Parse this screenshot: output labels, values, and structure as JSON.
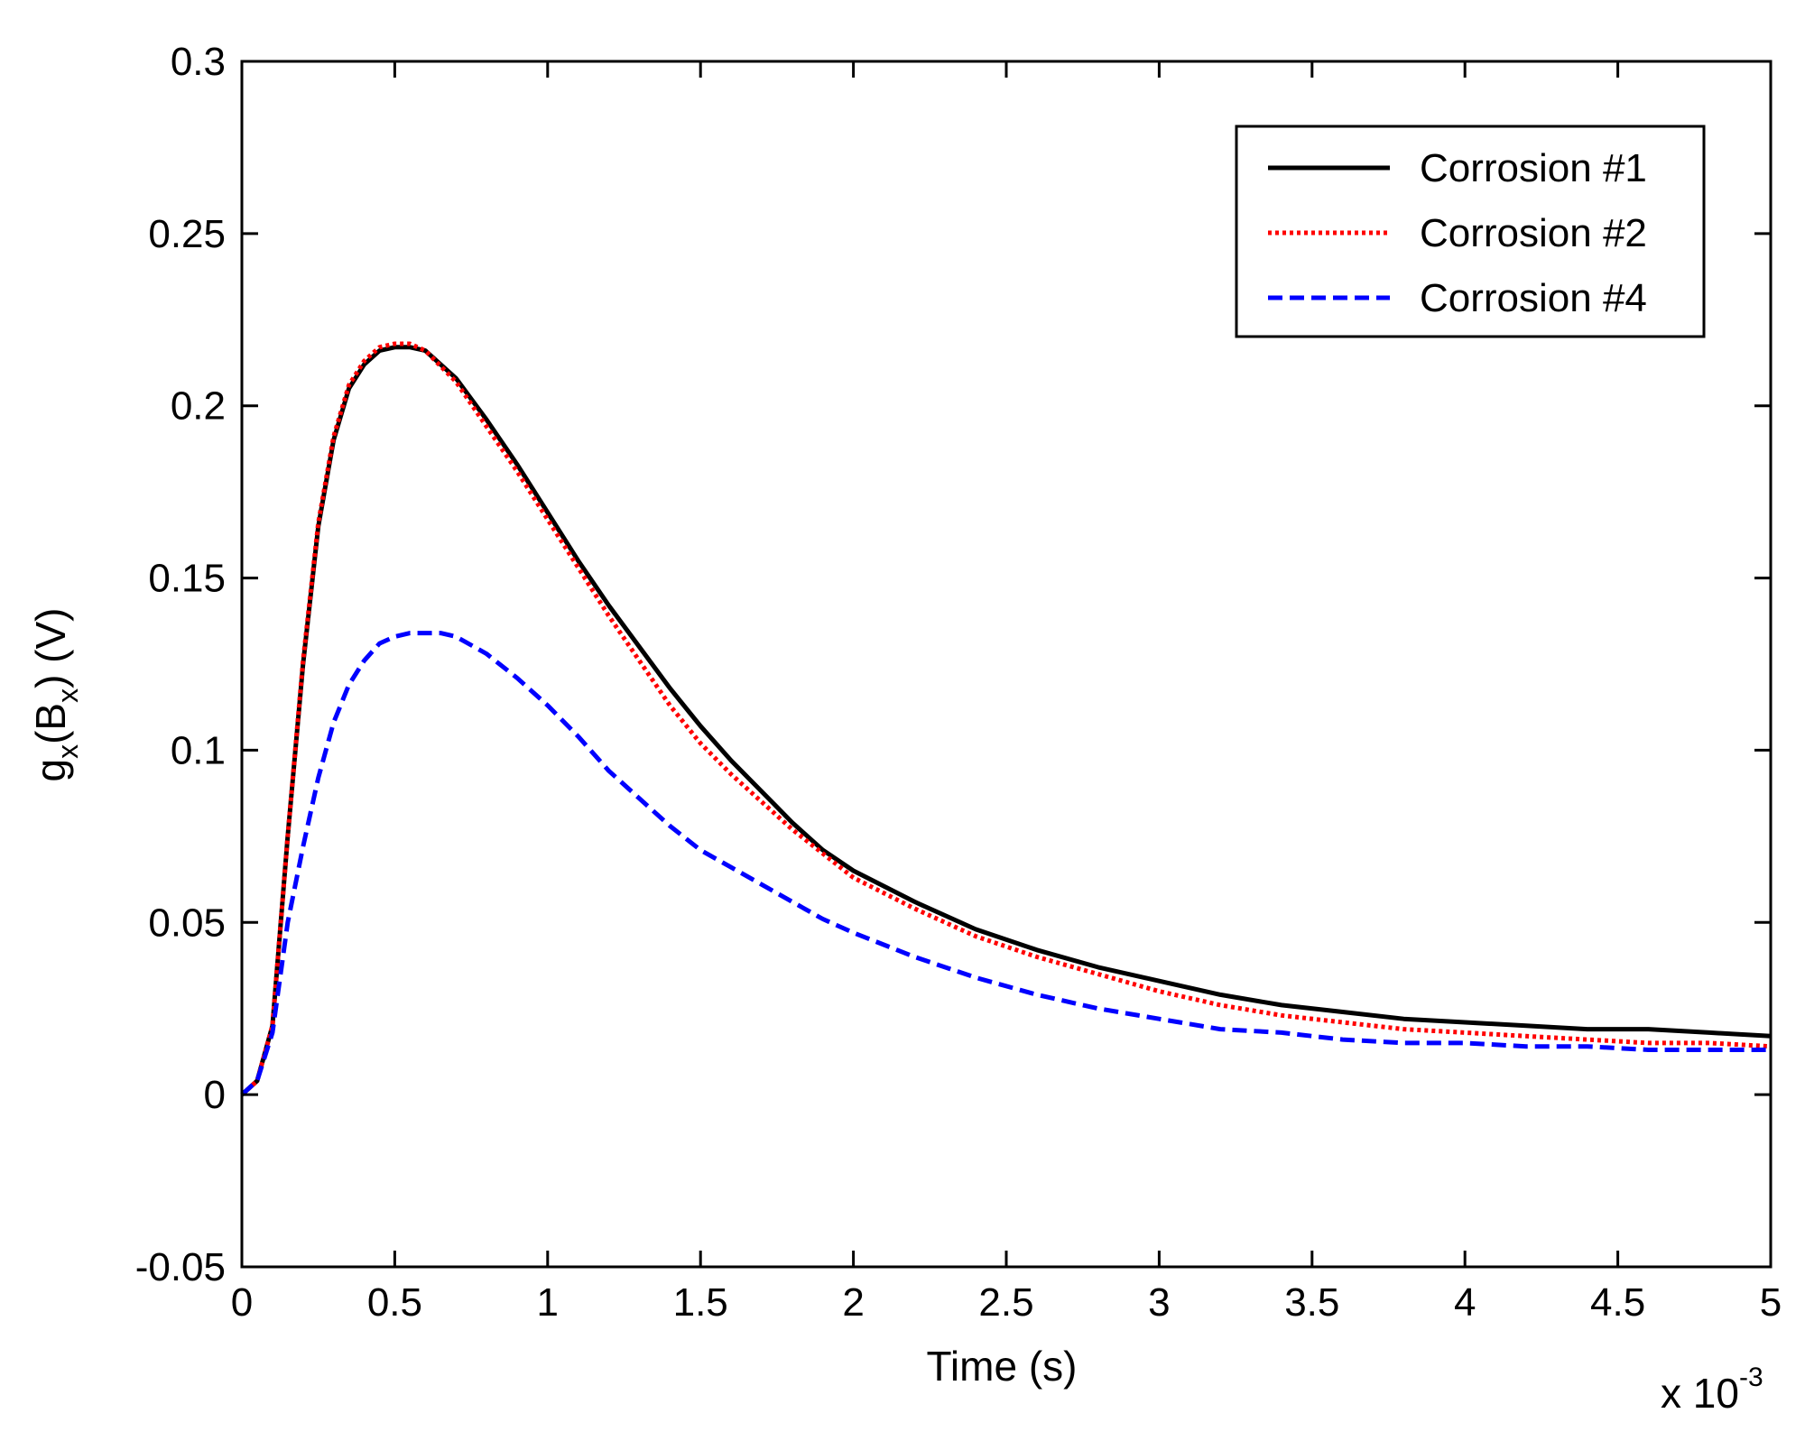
{
  "chart_data": {
    "type": "line",
    "title": "",
    "xlabel": "Time (s)",
    "ylabel": {
      "base": "g",
      "sub1": "x",
      "mid": "(B",
      "sub2": "x",
      "end": ") (V)"
    },
    "x_multiplier": {
      "prefix": "x 10",
      "exponent": "-3"
    },
    "xlim": [
      0,
      5
    ],
    "ylim": [
      -0.05,
      0.3
    ],
    "x_ticks": [
      0,
      0.5,
      1,
      1.5,
      2,
      2.5,
      3,
      3.5,
      4,
      4.5,
      5
    ],
    "x_tick_labels": [
      "0",
      "0.5",
      "1",
      "1.5",
      "2",
      "2.5",
      "3",
      "3.5",
      "4",
      "4.5",
      "5"
    ],
    "y_ticks": [
      -0.05,
      0,
      0.05,
      0.1,
      0.15,
      0.2,
      0.25,
      0.3
    ],
    "y_tick_labels": [
      "-0.05",
      "0",
      "0.05",
      "0.1",
      "0.15",
      "0.2",
      "0.25",
      "0.3"
    ],
    "grid": false,
    "legend_position": "top-right",
    "series": [
      {
        "name": "Corrosion #1",
        "color": "#000000",
        "style": "solid",
        "x": [
          0,
          0.05,
          0.1,
          0.15,
          0.2,
          0.25,
          0.3,
          0.35,
          0.4,
          0.45,
          0.5,
          0.55,
          0.6,
          0.7,
          0.8,
          0.9,
          1.0,
          1.1,
          1.2,
          1.3,
          1.4,
          1.5,
          1.6,
          1.7,
          1.8,
          1.9,
          2.0,
          2.2,
          2.4,
          2.6,
          2.8,
          3.0,
          3.2,
          3.4,
          3.6,
          3.8,
          4.0,
          4.2,
          4.4,
          4.6,
          4.8,
          5.0
        ],
        "y": [
          0,
          0.004,
          0.02,
          0.075,
          0.125,
          0.165,
          0.19,
          0.205,
          0.212,
          0.216,
          0.217,
          0.217,
          0.216,
          0.208,
          0.196,
          0.183,
          0.169,
          0.155,
          0.142,
          0.13,
          0.118,
          0.107,
          0.097,
          0.088,
          0.079,
          0.071,
          0.065,
          0.056,
          0.048,
          0.042,
          0.037,
          0.033,
          0.029,
          0.026,
          0.024,
          0.022,
          0.021,
          0.02,
          0.019,
          0.019,
          0.018,
          0.017
        ]
      },
      {
        "name": "Corrosion #2",
        "color": "#ff0000",
        "style": "dotted",
        "x": [
          0,
          0.05,
          0.1,
          0.15,
          0.2,
          0.25,
          0.3,
          0.35,
          0.4,
          0.45,
          0.5,
          0.55,
          0.6,
          0.7,
          0.8,
          0.9,
          1.0,
          1.1,
          1.2,
          1.3,
          1.4,
          1.5,
          1.6,
          1.7,
          1.8,
          1.9,
          2.0,
          2.2,
          2.4,
          2.6,
          2.8,
          3.0,
          3.2,
          3.4,
          3.6,
          3.8,
          4.0,
          4.2,
          4.4,
          4.6,
          4.8,
          5.0
        ],
        "y": [
          0,
          0.004,
          0.02,
          0.075,
          0.126,
          0.166,
          0.191,
          0.206,
          0.213,
          0.217,
          0.218,
          0.218,
          0.216,
          0.207,
          0.194,
          0.181,
          0.167,
          0.153,
          0.139,
          0.126,
          0.113,
          0.102,
          0.093,
          0.085,
          0.077,
          0.07,
          0.063,
          0.054,
          0.046,
          0.04,
          0.035,
          0.03,
          0.026,
          0.023,
          0.021,
          0.019,
          0.018,
          0.017,
          0.016,
          0.015,
          0.015,
          0.014
        ]
      },
      {
        "name": "Corrosion #4",
        "color": "#0000ff",
        "style": "dashed",
        "x": [
          0,
          0.05,
          0.1,
          0.15,
          0.2,
          0.25,
          0.3,
          0.35,
          0.4,
          0.45,
          0.5,
          0.55,
          0.6,
          0.65,
          0.7,
          0.8,
          0.9,
          1.0,
          1.1,
          1.2,
          1.3,
          1.4,
          1.5,
          1.6,
          1.7,
          1.8,
          1.9,
          2.0,
          2.2,
          2.4,
          2.6,
          2.8,
          3.0,
          3.2,
          3.4,
          3.6,
          3.8,
          4.0,
          4.2,
          4.4,
          4.6,
          4.8,
          5.0
        ],
        "y": [
          0,
          0.004,
          0.018,
          0.05,
          0.072,
          0.092,
          0.108,
          0.119,
          0.126,
          0.131,
          0.133,
          0.134,
          0.134,
          0.134,
          0.133,
          0.128,
          0.121,
          0.113,
          0.104,
          0.094,
          0.086,
          0.078,
          0.071,
          0.066,
          0.061,
          0.056,
          0.051,
          0.047,
          0.04,
          0.034,
          0.029,
          0.025,
          0.022,
          0.019,
          0.018,
          0.016,
          0.015,
          0.015,
          0.014,
          0.014,
          0.013,
          0.013,
          0.013
        ]
      }
    ]
  }
}
